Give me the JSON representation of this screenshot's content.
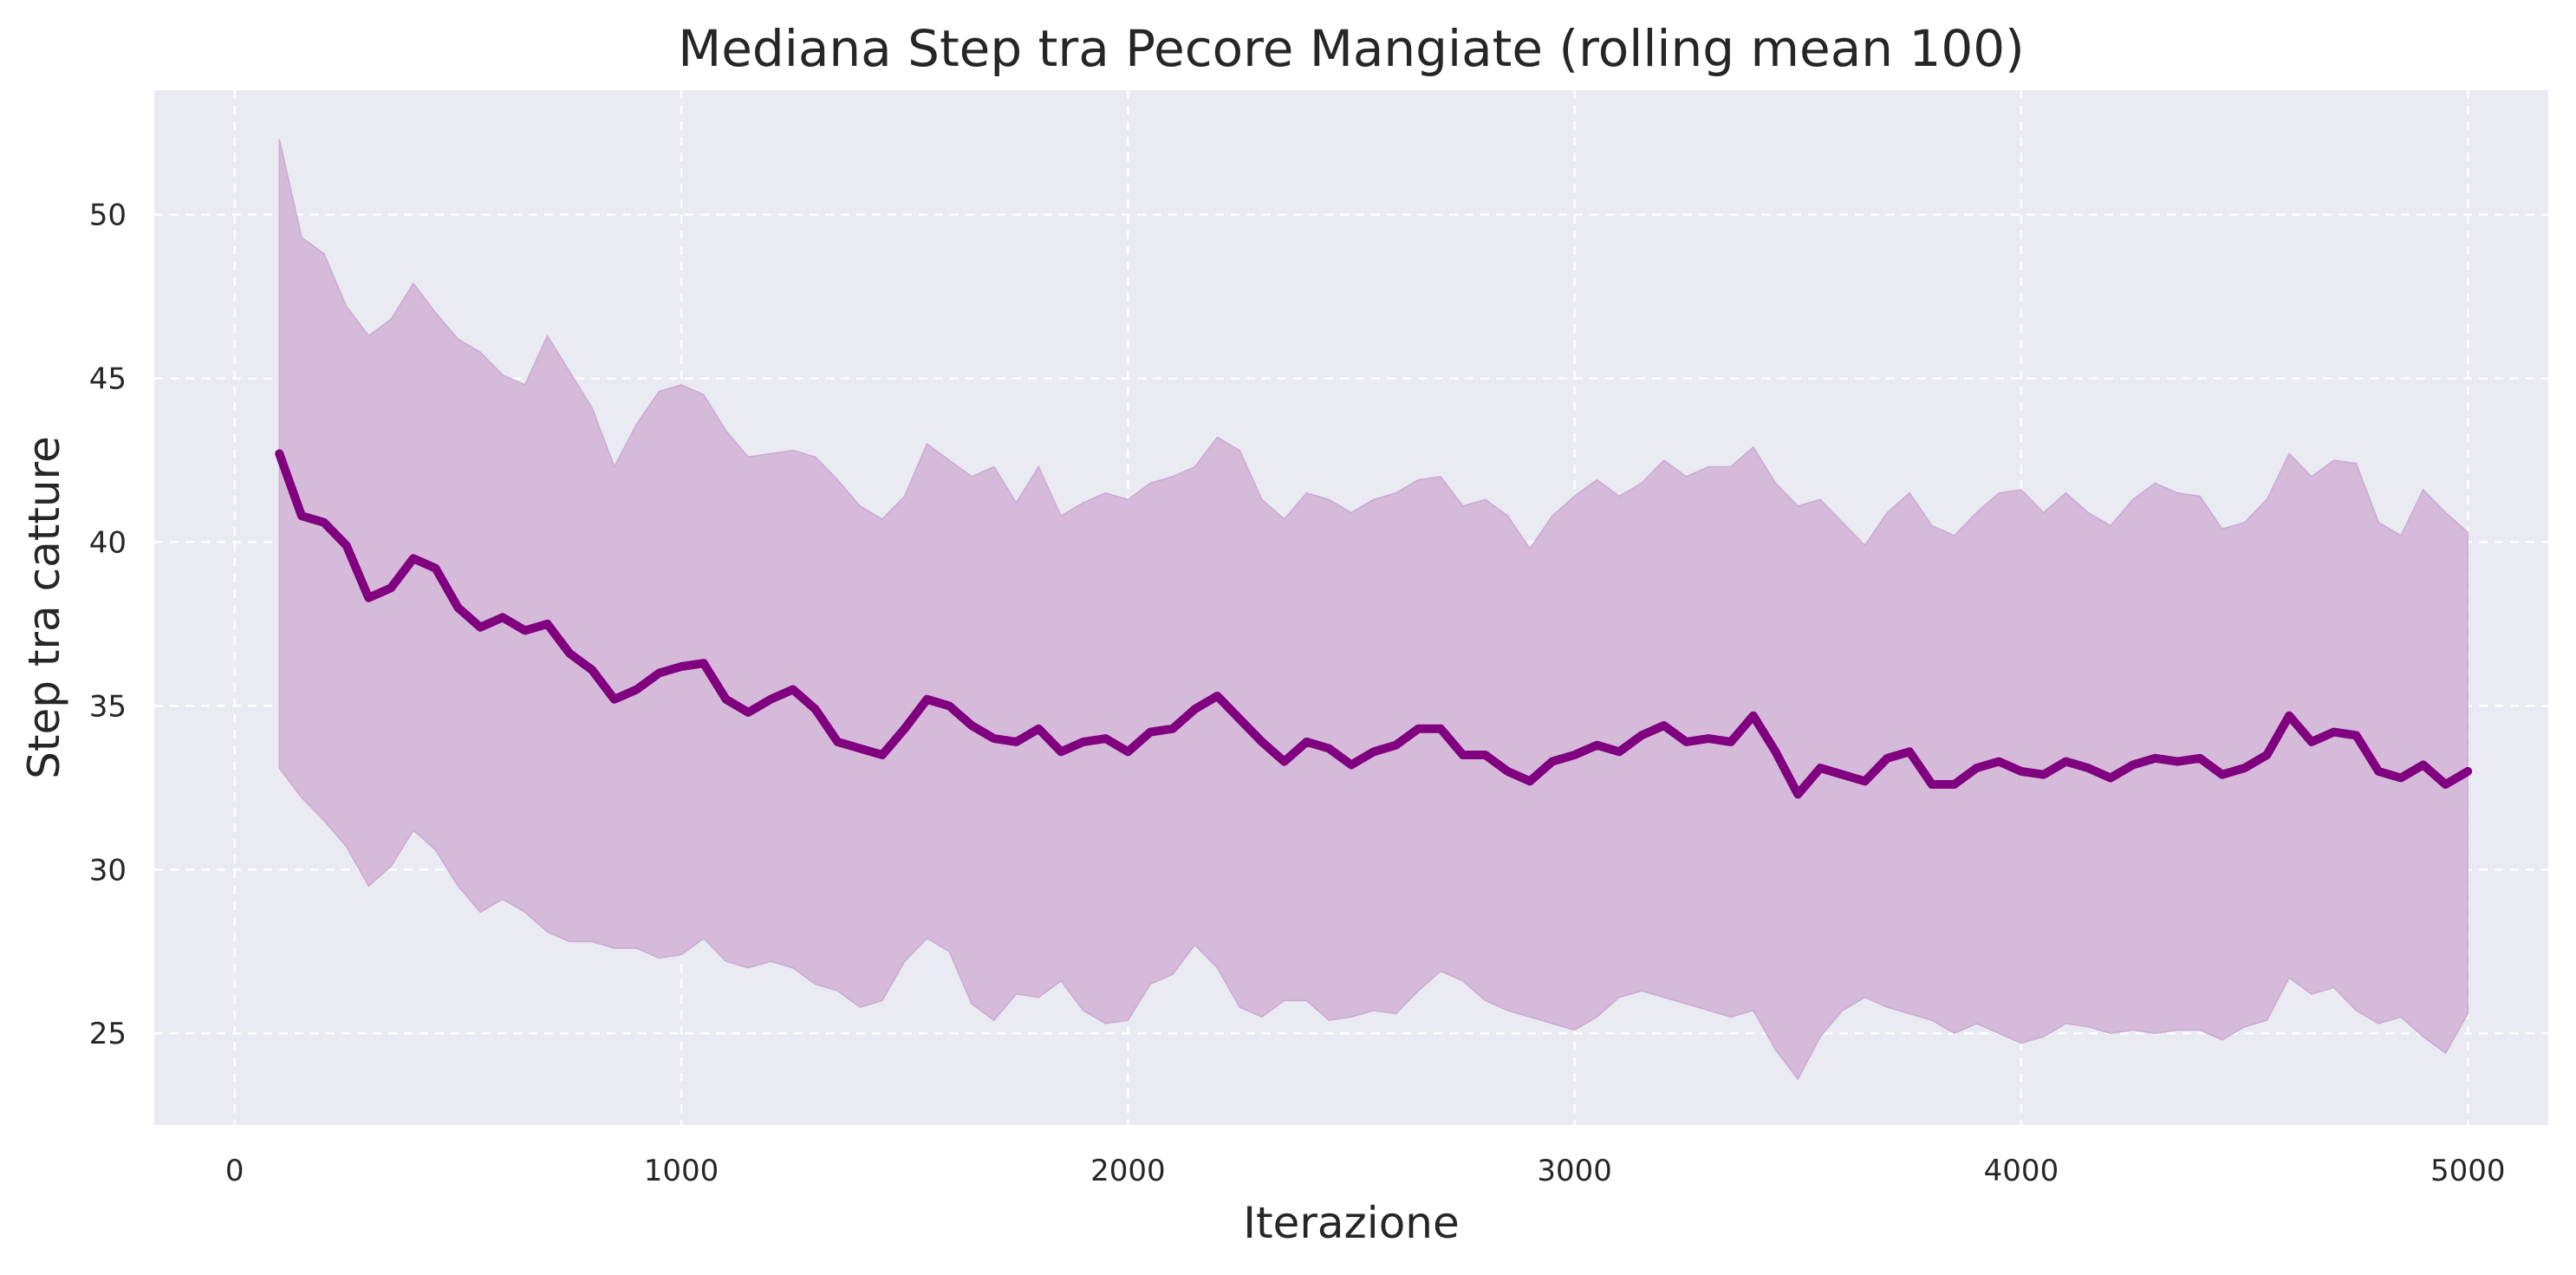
{
  "chart_data": {
    "type": "line",
    "title": "Mediana Step tra Pecore Mangiate (rolling mean 100)",
    "xlabel": "Iterazione",
    "ylabel": "Step tra catture",
    "xlim": [
      -180,
      5180
    ],
    "ylim": [
      22.2,
      53.8
    ],
    "x_ticks": [
      0,
      1000,
      2000,
      3000,
      4000,
      5000
    ],
    "y_ticks": [
      25,
      30,
      35,
      40,
      45,
      50
    ],
    "grid": true,
    "legend": "none",
    "colors": {
      "plot_background": "#eaeaf2",
      "line": "#800080",
      "band": "#d4b8d9"
    },
    "series": [
      {
        "type": "line",
        "x": [
          100,
          150,
          200,
          250,
          300,
          350,
          400,
          450,
          500,
          550,
          600,
          650,
          700,
          750,
          800,
          850,
          900,
          950,
          1000,
          1050,
          1100,
          1150,
          1200,
          1250,
          1300,
          1350,
          1400,
          1450,
          1500,
          1550,
          1600,
          1650,
          1700,
          1750,
          1800,
          1850,
          1900,
          1950,
          2000,
          2050,
          2100,
          2150,
          2200,
          2250,
          2300,
          2350,
          2400,
          2450,
          2500,
          2550,
          2600,
          2650,
          2700,
          2750,
          2800,
          2850,
          2900,
          2950,
          3000,
          3050,
          3100,
          3150,
          3200,
          3250,
          3300,
          3350,
          3400,
          3450,
          3500,
          3550,
          3600,
          3650,
          3700,
          3750,
          3800,
          3850,
          3900,
          3950,
          4000,
          4050,
          4100,
          4150,
          4200,
          4250,
          4300,
          4350,
          4400,
          4450,
          4500,
          4550,
          4600,
          4650,
          4700,
          4750,
          4800,
          4850,
          4900,
          4950,
          5000
        ],
        "y": [
          42.7,
          40.8,
          40.6,
          39.9,
          38.3,
          38.6,
          39.5,
          39.2,
          38.0,
          37.4,
          37.7,
          37.3,
          37.5,
          36.6,
          36.1,
          35.2,
          35.5,
          36.0,
          36.2,
          36.3,
          35.2,
          34.8,
          35.2,
          35.5,
          34.9,
          33.9,
          33.7,
          33.5,
          34.3,
          35.2,
          35.0,
          34.4,
          34.0,
          33.9,
          34.3,
          33.6,
          33.9,
          34.0,
          33.6,
          34.2,
          34.3,
          34.9,
          35.3,
          34.6,
          33.9,
          33.3,
          33.9,
          33.7,
          33.2,
          33.6,
          33.8,
          34.3,
          34.3,
          33.5,
          33.5,
          33.0,
          32.7,
          33.3,
          33.5,
          33.8,
          33.6,
          34.1,
          34.4,
          33.9,
          34.0,
          33.9,
          34.7,
          33.6,
          32.3,
          33.1,
          32.9,
          32.7,
          33.4,
          33.6,
          32.6,
          32.6,
          33.1,
          33.3,
          33.0,
          32.9,
          33.3,
          33.1,
          32.8,
          33.2,
          33.4,
          33.3,
          33.4,
          32.9,
          33.1,
          33.5,
          34.7,
          33.9,
          34.2,
          34.1,
          33.0,
          32.8,
          33.2,
          32.6,
          33.0
        ],
        "lower": [
          33.1,
          32.2,
          31.5,
          30.7,
          29.5,
          30.1,
          31.2,
          30.6,
          29.5,
          28.7,
          29.1,
          28.7,
          28.1,
          27.8,
          27.8,
          27.6,
          27.6,
          27.3,
          27.4,
          27.9,
          27.2,
          27.0,
          27.2,
          27.0,
          26.5,
          26.3,
          25.8,
          26.0,
          27.2,
          27.9,
          27.5,
          25.9,
          25.4,
          26.2,
          26.1,
          26.6,
          25.7,
          25.3,
          25.4,
          26.5,
          26.8,
          27.7,
          27.0,
          25.8,
          25.5,
          26.0,
          26.0,
          25.4,
          25.5,
          25.7,
          25.6,
          26.3,
          26.9,
          26.6,
          26.0,
          25.7,
          25.5,
          25.3,
          25.1,
          25.5,
          26.1,
          26.3,
          26.1,
          25.9,
          25.7,
          25.5,
          25.7,
          24.5,
          23.6,
          24.9,
          25.7,
          26.1,
          25.8,
          25.6,
          25.4,
          25.0,
          25.3,
          25.0,
          24.7,
          24.9,
          25.3,
          25.2,
          25.0,
          25.1,
          25.0,
          25.1,
          25.1,
          24.8,
          25.2,
          25.4,
          26.7,
          26.2,
          26.4,
          25.7,
          25.3,
          25.5,
          24.9,
          24.4,
          25.6
        ],
        "upper": [
          52.3,
          49.3,
          48.8,
          47.2,
          46.3,
          46.8,
          47.9,
          47.0,
          46.2,
          45.8,
          45.1,
          44.8,
          46.3,
          45.2,
          44.1,
          42.3,
          43.6,
          44.6,
          44.8,
          44.5,
          43.4,
          42.6,
          42.7,
          42.8,
          42.6,
          41.9,
          41.1,
          40.7,
          41.4,
          43.0,
          42.5,
          42.0,
          42.3,
          41.2,
          42.3,
          40.8,
          41.2,
          41.5,
          41.3,
          41.8,
          42.0,
          42.3,
          43.2,
          42.8,
          41.3,
          40.7,
          41.5,
          41.3,
          40.9,
          41.3,
          41.5,
          41.9,
          42.0,
          41.1,
          41.3,
          40.8,
          39.8,
          40.8,
          41.4,
          41.9,
          41.4,
          41.8,
          42.5,
          42.0,
          42.3,
          42.3,
          42.9,
          41.8,
          41.1,
          41.3,
          40.6,
          39.9,
          40.9,
          41.5,
          40.5,
          40.2,
          40.9,
          41.5,
          41.6,
          40.9,
          41.5,
          40.9,
          40.5,
          41.3,
          41.8,
          41.5,
          41.4,
          40.4,
          40.6,
          41.3,
          42.7,
          42.0,
          42.5,
          42.4,
          40.6,
          40.2,
          41.6,
          40.9,
          40.3
        ]
      }
    ]
  }
}
